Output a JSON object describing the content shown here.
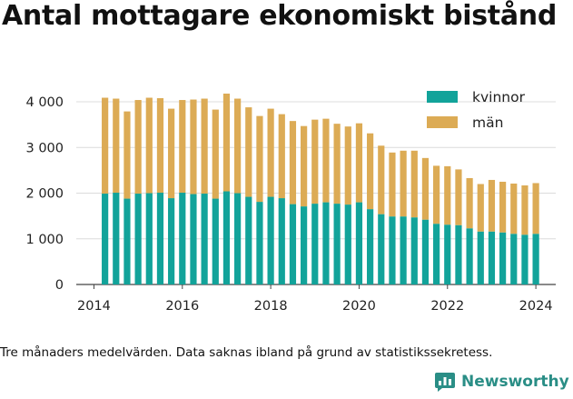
{
  "title": "Antal mottagare ekonomiskt bistånd",
  "caption": "Tre månaders medelvärden. Data saknas ibland på grund av statistikssekretess.",
  "brand": "Newsworthy",
  "colors": {
    "kvinnor": "#12a39a",
    "man": "#dcab55",
    "grid": "#dcdcdc",
    "axis": "#444444",
    "brand": "#2a8e86"
  },
  "chart_data": {
    "type": "bar",
    "stacked": true,
    "x": [
      2014.25,
      2014.5,
      2014.75,
      2015.0,
      2015.25,
      2015.5,
      2015.75,
      2016.0,
      2016.25,
      2016.5,
      2016.75,
      2017.0,
      2017.25,
      2017.5,
      2017.75,
      2018.0,
      2018.25,
      2018.5,
      2018.75,
      2019.0,
      2019.25,
      2019.5,
      2019.75,
      2020.0,
      2020.25,
      2020.5,
      2020.75,
      2021.0,
      2021.25,
      2021.5,
      2021.75,
      2022.0,
      2022.25,
      2022.5,
      2022.75,
      2023.0,
      2023.25,
      2023.5,
      2023.75,
      2024.0
    ],
    "series": [
      {
        "name": "kvinnor",
        "values": [
          1990,
          2010,
          1880,
          1990,
          2000,
          2010,
          1890,
          2010,
          1980,
          1990,
          1880,
          2040,
          2000,
          1920,
          1810,
          1920,
          1890,
          1760,
          1710,
          1770,
          1800,
          1770,
          1750,
          1800,
          1650,
          1540,
          1490,
          1490,
          1470,
          1420,
          1330,
          1310,
          1300,
          1230,
          1160,
          1160,
          1140,
          1110,
          1090,
          1110
        ]
      },
      {
        "name": "män",
        "values": [
          2100,
          2060,
          1910,
          2050,
          2090,
          2070,
          1960,
          2030,
          2070,
          2080,
          1950,
          2140,
          2070,
          1960,
          1880,
          1930,
          1840,
          1820,
          1760,
          1840,
          1830,
          1750,
          1710,
          1730,
          1660,
          1500,
          1400,
          1440,
          1460,
          1350,
          1270,
          1280,
          1220,
          1100,
          1040,
          1130,
          1110,
          1100,
          1080,
          1110
        ]
      }
    ],
    "xticks": [
      "2014",
      "2016",
      "2018",
      "2020",
      "2022",
      "2024"
    ],
    "yticks": [
      "0",
      "1 000",
      "2 000",
      "3 000",
      "4 000"
    ],
    "xlim": [
      2013.6,
      2024.45
    ],
    "ylim": [
      0,
      4200
    ],
    "grid": true,
    "legend": "top-right",
    "xlabel": "",
    "ylabel": ""
  }
}
